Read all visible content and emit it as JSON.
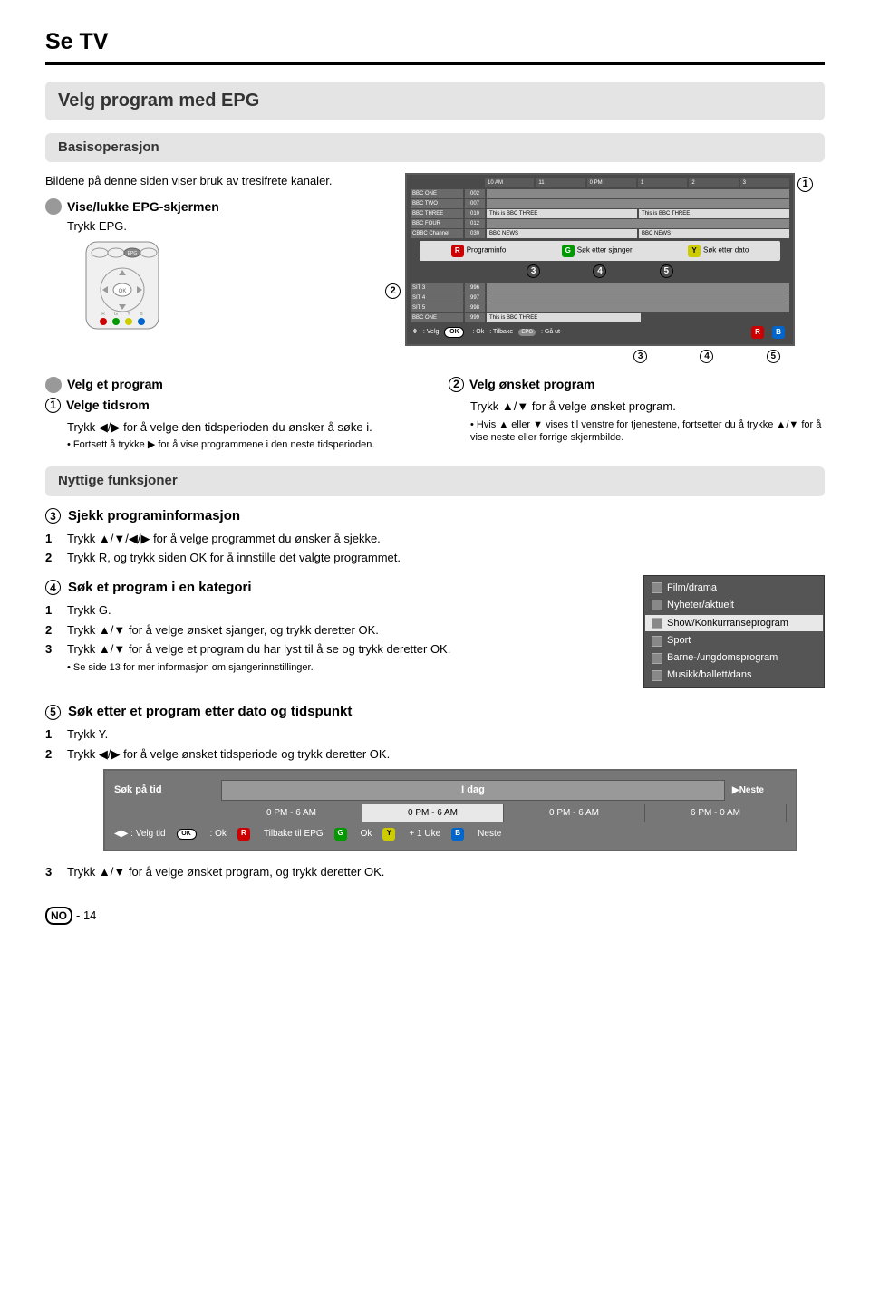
{
  "page": {
    "title": "Se TV",
    "footer_country": "NO",
    "footer_page": "- 14"
  },
  "section1": {
    "title": "Velg program med EPG",
    "basis": "Basisoperasjon",
    "intro": "Bildene på denne siden viser bruk av tresifrete kanaler.",
    "show_hide": "Vise/lukke EPG-skjermen",
    "show_hide_step": "Trykk EPG."
  },
  "epg": {
    "times": [
      "10 AM",
      "11",
      "0 PM",
      "1",
      "2",
      "3"
    ],
    "channels": [
      {
        "name": "BBC ONE",
        "num": "002",
        "progs": []
      },
      {
        "name": "BBC TWO",
        "num": "007",
        "progs": []
      },
      {
        "name": "BBC THREE",
        "num": "010",
        "progs": [
          "This is BBC THREE",
          "This is BBC THREE"
        ]
      },
      {
        "name": "BBC FOUR",
        "num": "012",
        "progs": []
      },
      {
        "name": "CBBC Channel",
        "num": "030",
        "progs": [
          "BBC NEWS",
          "BBC NEWS"
        ]
      }
    ],
    "btn_r": "Programinfo",
    "btn_g": "Søk etter sjanger",
    "btn_y": "Søk etter dato",
    "channels2": [
      {
        "name": "SIT 3",
        "num": "996",
        "progs": []
      },
      {
        "name": "SIT 4",
        "num": "997",
        "progs": []
      },
      {
        "name": "SIT 5",
        "num": "998",
        "progs": []
      },
      {
        "name": "BBC ONE",
        "num": "999",
        "progs": [
          "This is BBC THREE"
        ]
      }
    ],
    "foot_velg": ": Velg",
    "foot_ok": ": Ok",
    "foot_tilbake": ": Tilbake",
    "foot_gaut": ": Gå ut",
    "foot_r": "R",
    "foot_b": "B"
  },
  "velg_program": {
    "heading": "Velg et program",
    "step1_title": "Velge tidsrom",
    "step1_body": "Trykk ◀/▶ for å velge den tidsperioden du ønsker å søke i.",
    "step1_note": "Fortsett å trykke ▶ for å vise programmene i den neste tidsperioden.",
    "step2_title": "Velg ønsket program",
    "step2_body": "Trykk ▲/▼ for å velge ønsket program.",
    "step2_note": "Hvis ▲ eller ▼ vises til venstre for tjenestene, fortsetter du å trykke ▲/▼ for å vise neste eller forrige skjermbilde."
  },
  "nyttige": {
    "heading": "Nyttige funksjoner",
    "s3_title": "Sjekk programinformasjon",
    "s3_1": "Trykk ▲/▼/◀/▶ for å velge programmet du ønsker å sjekke.",
    "s3_2": "Trykk R, og trykk siden OK for å innstille det valgte programmet.",
    "s4_title": "Søk et program i en kategori",
    "s4_1": "Trykk G.",
    "s4_2": "Trykk ▲/▼ for å velge ønsket sjanger, og trykk deretter OK.",
    "s4_3": "Trykk ▲/▼ for å velge et program du har lyst til å se og trykk deretter OK.",
    "s4_note": "Se side 13 for mer informasjon om sjangerinnstillinger.",
    "s5_title": "Søk etter et program etter dato og tidspunkt",
    "s5_1": "Trykk Y.",
    "s5_2": "Trykk ◀/▶ for å velge ønsket tidsperiode og trykk deretter OK.",
    "s5_3": "Trykk ▲/▼ for å velge ønsket program, og trykk deretter OK."
  },
  "genres": {
    "items": [
      "Film/drama",
      "Nyheter/aktuelt",
      "Show/Konkurranseprogram",
      "Sport",
      "Barne-/ungdomsprogram",
      "Musikk/ballett/dans"
    ],
    "selected_index": 2
  },
  "timesearch": {
    "label_top": "Søk på tid",
    "day": "I dag",
    "slots": [
      "0 PM - 6 AM",
      "0 PM - 6 AM",
      "0 PM - 6 AM",
      "6 PM - 0 AM"
    ],
    "next": "▶Neste",
    "foot_velg": "◀▶ : Velg tid",
    "foot_ok": ": Ok",
    "foot_r": "Tilbake til EPG",
    "foot_g": "Ok",
    "foot_y": "+ 1 Uke",
    "foot_b": "Neste"
  },
  "markers": {
    "m1": "1",
    "m2": "2",
    "m3": "3",
    "m4": "4",
    "m5": "5"
  },
  "colors": {
    "grey_bg": "#e4e4e4",
    "epg_bg": "#4a4a4a",
    "pill_r": "#c00",
    "pill_g": "#090",
    "pill_y": "#cc0",
    "pill_b": "#06c"
  }
}
